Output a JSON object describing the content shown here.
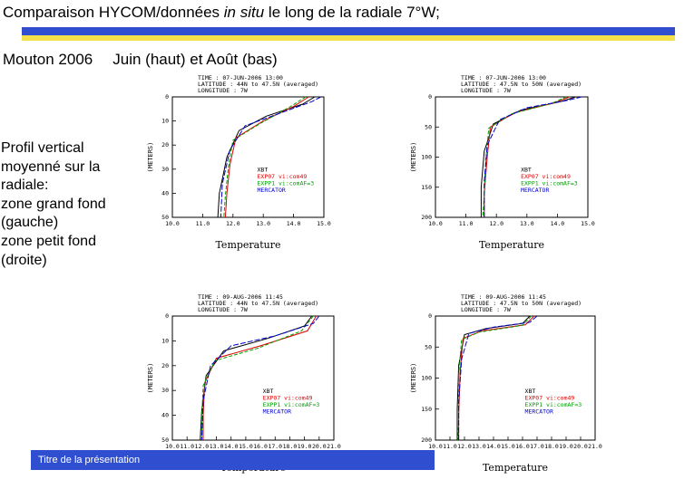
{
  "title": {
    "part1": "Comparaison HYCOM/données ",
    "italic": "in situ",
    "part2": " le long de la radiale 7°W;"
  },
  "subtitle": {
    "left": "Mouton 2006",
    "right": "Juin (haut) et Août (bas)"
  },
  "description": [
    "Profil vertical",
    "moyenné sur la",
    "radiale:",
    "zone grand fond",
    "(gauche)",
    "zone petit fond",
    "(droite)"
  ],
  "footer": {
    "label": "Titre de la présentation"
  },
  "colors": {
    "xbt": "#000000",
    "exp07": "#e00000",
    "expp1": "#00a000",
    "mercator": "#0000cc",
    "banner_blue": "#2f4fd0",
    "banner_yellow": "#f3e04a"
  },
  "chart_data": [
    {
      "type": "line",
      "header": [
        "TIME : 07-JUN-2006 13:00",
        "LATITUDE : 44N to 47.5N (averaged)",
        "LONGITUDE : 7W"
      ],
      "ylabel": "(METERS)",
      "xlabel": "Temperature",
      "x_ticks": [
        "10.0",
        "11.0",
        "12.0",
        "13.0",
        "14.0",
        "15.0"
      ],
      "y_ticks": [
        "0",
        "10",
        "20",
        "30",
        "40",
        "50"
      ],
      "xlim": [
        10,
        15
      ],
      "ylim": [
        0,
        50
      ],
      "y_inverted": true,
      "legend": [
        "XBT",
        "EXP07 vi:com49",
        "EXPP1 vi:comAF=3",
        "MERCATOR"
      ],
      "series": [
        {
          "name": "XBT",
          "x": [
            14.7,
            14.3,
            13.1,
            12.2,
            11.8,
            11.55,
            11.5
          ],
          "y": [
            0,
            3,
            8,
            14,
            25,
            40,
            50
          ]
        },
        {
          "name": "EXP07 vi:com49",
          "x": [
            14.5,
            14.0,
            13.0,
            12.1,
            11.9,
            11.8,
            11.75
          ],
          "y": [
            0,
            4,
            10,
            17,
            28,
            40,
            50
          ]
        },
        {
          "name": "EXPP1 vi:comAF=3",
          "x": [
            14.4,
            13.9,
            12.9,
            12.0,
            11.85,
            11.75,
            11.7
          ],
          "y": [
            0,
            4,
            11,
            18,
            29,
            41,
            50
          ]
        },
        {
          "name": "MERCATOR",
          "x": [
            14.9,
            14.6,
            13.5,
            12.4,
            11.9,
            11.65,
            11.6
          ],
          "y": [
            0,
            2,
            7,
            12,
            22,
            36,
            50
          ]
        }
      ]
    },
    {
      "type": "line",
      "header": [
        "TIME : 07-JUN-2006 13:00",
        "LATITUDE : 47.5N to 50N (averaged)",
        "LONGITUDE : 7W"
      ],
      "ylabel": "(METERS)",
      "xlabel": "Temperature",
      "x_ticks": [
        "10.0",
        "11.0",
        "12.0",
        "13.0",
        "14.0",
        "15.0"
      ],
      "y_ticks": [
        "0",
        "50",
        "100",
        "150",
        "200"
      ],
      "xlim": [
        10,
        15
      ],
      "ylim": [
        0,
        200
      ],
      "y_inverted": true,
      "legend": [
        "XBT",
        "EXP07 vi:com49",
        "EXPP1 vi:comAF=3",
        "MERCATOR"
      ],
      "series": [
        {
          "name": "XBT",
          "x": [
            14.6,
            14.1,
            12.8,
            11.9,
            11.6,
            11.5,
            11.5
          ],
          "y": [
            0,
            8,
            22,
            45,
            90,
            150,
            200
          ]
        },
        {
          "name": "EXP07 vi:com49",
          "x": [
            14.4,
            13.9,
            12.6,
            11.8,
            11.7,
            11.6,
            11.6
          ],
          "y": [
            0,
            10,
            26,
            50,
            100,
            160,
            200
          ]
        },
        {
          "name": "EXPP1 vi:comAF=3",
          "x": [
            14.3,
            13.8,
            12.5,
            11.75,
            11.65,
            11.6,
            11.55
          ],
          "y": [
            0,
            11,
            28,
            52,
            105,
            165,
            200
          ]
        },
        {
          "name": "MERCATOR",
          "x": [
            14.8,
            14.3,
            13.0,
            12.1,
            11.7,
            11.6,
            11.6
          ],
          "y": [
            0,
            6,
            18,
            38,
            80,
            140,
            200
          ]
        }
      ]
    },
    {
      "type": "line",
      "header": [
        "TIME : 09-AUG-2006 11:45",
        "LATITUDE : 44N to 47.5N (averaged)",
        "LONGITUDE : 7W"
      ],
      "ylabel": "(METERS)",
      "xlabel": "Temperature",
      "x_ticks": [
        "10.0",
        "11.0",
        "12.0",
        "13.0",
        "14.0",
        "15.0",
        "16.0",
        "17.0",
        "18.0",
        "19.0",
        "20.0",
        "21.0"
      ],
      "y_ticks": [
        "0",
        "10",
        "20",
        "30",
        "40",
        "50"
      ],
      "xlim": [
        10,
        21
      ],
      "ylim": [
        0,
        50
      ],
      "y_inverted": true,
      "legend": [
        "XBT",
        "EXP07 vi:com49",
        "EXPP1 vi:comAF=3",
        "MERCATOR"
      ],
      "series": [
        {
          "name": "XBT",
          "x": [
            19.5,
            19.0,
            16.5,
            13.5,
            12.3,
            12.0,
            11.9
          ],
          "y": [
            0,
            4,
            9,
            14,
            24,
            38,
            50
          ]
        },
        {
          "name": "EXP07 vi:com49",
          "x": [
            19.8,
            19.2,
            16.0,
            13.0,
            12.2,
            12.1,
            12.1
          ],
          "y": [
            0,
            6,
            12,
            17,
            27,
            40,
            50
          ]
        },
        {
          "name": "EXPP1 vi:comAF=3",
          "x": [
            19.6,
            18.8,
            15.8,
            12.9,
            12.1,
            12.0,
            12.0
          ],
          "y": [
            0,
            6,
            13,
            18,
            28,
            41,
            50
          ]
        },
        {
          "name": "MERCATOR",
          "x": [
            20.0,
            19.6,
            17.0,
            14.0,
            12.6,
            12.1,
            12.0
          ],
          "y": [
            0,
            3,
            8,
            12,
            20,
            34,
            50
          ]
        }
      ]
    },
    {
      "type": "line",
      "header": [
        "TIME : 09-AUG-2006 11:45",
        "LATITUDE : 47.5N to 50N (averaged)",
        "LONGITUDE : 7W"
      ],
      "ylabel": "(METERS)",
      "xlabel": "Temperature",
      "x_ticks": [
        "10.0",
        "11.0",
        "12.0",
        "13.0",
        "14.0",
        "15.0",
        "16.0",
        "17.0",
        "18.0",
        "19.0",
        "20.0",
        "21.0"
      ],
      "y_ticks": [
        "0",
        "50",
        "100",
        "150",
        "200"
      ],
      "xlim": [
        10,
        21
      ],
      "ylim": [
        0,
        200
      ],
      "y_inverted": true,
      "legend": [
        "XBT",
        "EXP07 vi:com49",
        "EXPP1 vi:comAF=3",
        "MERCATOR"
      ],
      "series": [
        {
          "name": "XBT",
          "x": [
            16.5,
            16.0,
            13.5,
            12.0,
            11.6,
            11.5,
            11.5
          ],
          "y": [
            0,
            12,
            20,
            30,
            80,
            150,
            200
          ]
        },
        {
          "name": "EXP07 vi:com49",
          "x": [
            16.8,
            16.2,
            13.2,
            11.9,
            11.7,
            11.6,
            11.6
          ],
          "y": [
            0,
            14,
            24,
            36,
            90,
            160,
            200
          ]
        },
        {
          "name": "EXPP1 vi:comAF=3",
          "x": [
            16.6,
            16.0,
            13.0,
            11.8,
            11.6,
            11.6,
            11.55
          ],
          "y": [
            0,
            15,
            26,
            38,
            95,
            165,
            200
          ]
        },
        {
          "name": "MERCATOR",
          "x": [
            17.0,
            16.5,
            14.0,
            12.3,
            11.8,
            11.6,
            11.6
          ],
          "y": [
            0,
            10,
            18,
            28,
            70,
            140,
            200
          ]
        }
      ]
    }
  ]
}
